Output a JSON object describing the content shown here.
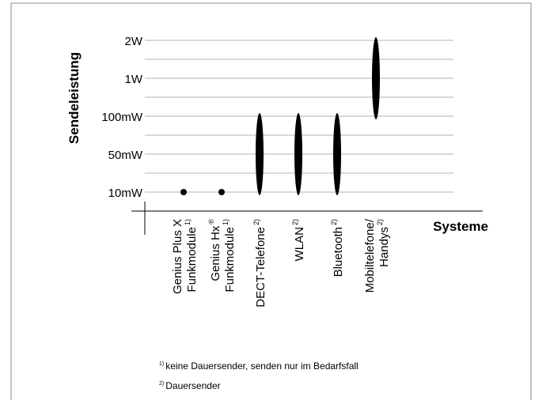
{
  "chart_data": {
    "type": "scatter",
    "ylabel": "Sendeleistung",
    "xlabel": "Systeme",
    "y_ticks": [
      "10mW",
      "50mW",
      "100mW",
      "1W",
      "2W"
    ],
    "grid": true,
    "categories": [
      {
        "lines": [
          {
            "text": "Genius Plus X",
            "sup": ""
          },
          {
            "text": "Funkmodule",
            "sup": "1)"
          }
        ],
        "low": "10mW",
        "high": "10mW",
        "shape": "dot"
      },
      {
        "lines": [
          {
            "text": "Genius Hx",
            "sup": "®"
          },
          {
            "text": "Funkmodule",
            "sup": "1)"
          }
        ],
        "low": "10mW",
        "high": "10mW",
        "shape": "dot"
      },
      {
        "lines": [
          {
            "text": "DECT-Telefone",
            "sup": "2)"
          }
        ],
        "low": "10mW",
        "high": "100mW",
        "shape": "range"
      },
      {
        "lines": [
          {
            "text": "WLAN",
            "sup": "2)"
          }
        ],
        "low": "10mW",
        "high": "100mW",
        "shape": "range"
      },
      {
        "lines": [
          {
            "text": "Bluetooth",
            "sup": "2)"
          }
        ],
        "low": "10mW",
        "high": "100mW",
        "shape": "range"
      },
      {
        "lines": [
          {
            "text": "Mobiltelefone/",
            "sup": ""
          },
          {
            "text": "Handys",
            "sup": "2)"
          }
        ],
        "low": "100mW",
        "high": "2W",
        "shape": "range"
      }
    ],
    "colors": {
      "marks": "#000000",
      "grid": "#b3b3b3",
      "frame": "#8a8a8a"
    }
  },
  "footnotes": [
    {
      "marker": "1)",
      "text": "keine Dauersender, senden nur im Bedarfsfall"
    },
    {
      "marker": "2)",
      "text": "Dauersender"
    }
  ]
}
